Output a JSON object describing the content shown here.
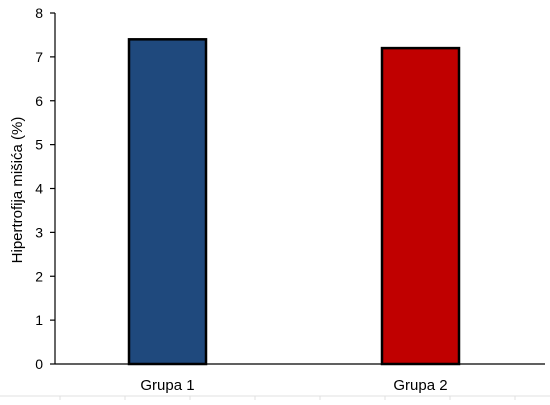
{
  "chart_data": {
    "type": "bar",
    "categories": [
      "Grupa 1",
      "Grupa 2"
    ],
    "values": [
      7.4,
      7.2
    ],
    "colors": [
      "#1f497d",
      "#c00000"
    ],
    "title": "",
    "xlabel": "",
    "ylabel": "Hipertrofija mišića (%)",
    "ylim": [
      0,
      8
    ],
    "yticks": [
      "0",
      "1",
      "2",
      "3",
      "4",
      "5",
      "6",
      "7",
      "8"
    ],
    "grid": false,
    "legend": "none"
  }
}
